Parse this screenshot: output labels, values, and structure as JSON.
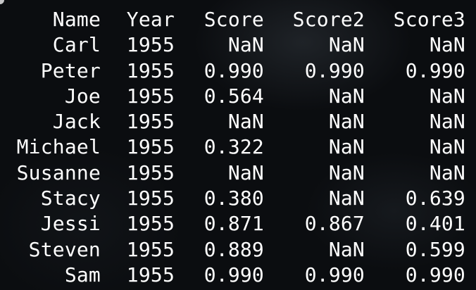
{
  "window": {
    "title": ""
  },
  "dataframe": {
    "columns": [
      "Name",
      "Year",
      "Score",
      "Score2",
      "Score3"
    ],
    "rows": [
      {
        "name": "Carl",
        "year": "1955",
        "score": "NaN",
        "score2": "NaN",
        "score3": "NaN"
      },
      {
        "name": "Peter",
        "year": "1955",
        "score": "0.990",
        "score2": "0.990",
        "score3": "0.990"
      },
      {
        "name": "Joe",
        "year": "1955",
        "score": "0.564",
        "score2": "NaN",
        "score3": "NaN"
      },
      {
        "name": "Jack",
        "year": "1955",
        "score": "NaN",
        "score2": "NaN",
        "score3": "NaN"
      },
      {
        "name": "Michael",
        "year": "1955",
        "score": "0.322",
        "score2": "NaN",
        "score3": "NaN"
      },
      {
        "name": "Susanne",
        "year": "1955",
        "score": "NaN",
        "score2": "NaN",
        "score3": "NaN"
      },
      {
        "name": "Stacy",
        "year": "1955",
        "score": "0.380",
        "score2": "NaN",
        "score3": "0.639"
      },
      {
        "name": "Jessi",
        "year": "1955",
        "score": "0.871",
        "score2": "0.867",
        "score3": "0.401"
      },
      {
        "name": "Steven",
        "year": "1955",
        "score": "0.889",
        "score2": "NaN",
        "score3": "0.599"
      },
      {
        "name": "Sam",
        "year": "1955",
        "score": "0.990",
        "score2": "0.990",
        "score3": "0.990"
      }
    ]
  },
  "colors": {
    "background": "#0b0d10",
    "text": "#ffffff"
  }
}
